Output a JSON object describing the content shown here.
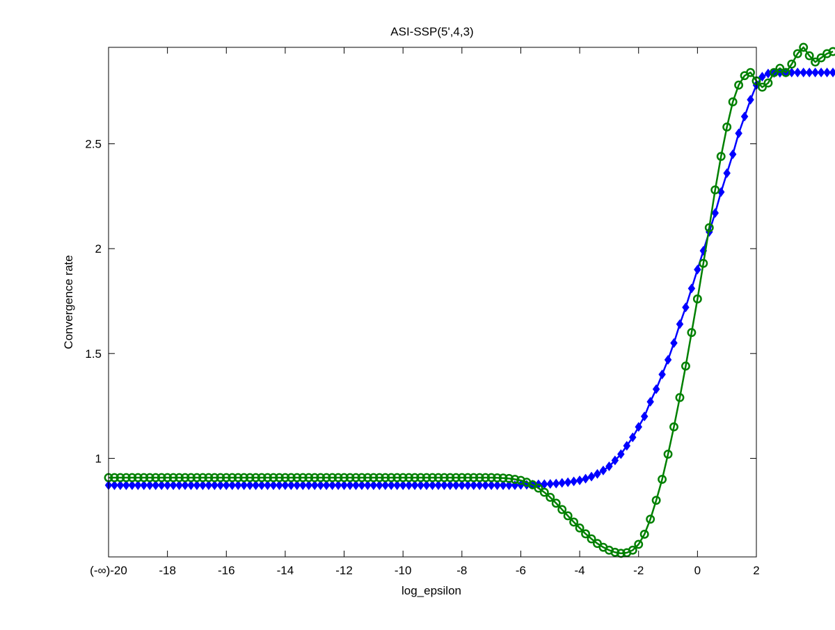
{
  "chart_data": {
    "type": "line",
    "title": "ASI-SSP(5',4,3)",
    "xlabel": "log_epsilon",
    "ylabel": "Convergence rate",
    "xlim": [
      -20,
      2
    ],
    "ylim": [
      0.53,
      2.96
    ],
    "grid": false,
    "legend": "none",
    "x_tick_labels": [
      {
        "value": -20,
        "label": "(-∞)-20"
      },
      {
        "value": -18,
        "label": "-18"
      },
      {
        "value": -16,
        "label": "-16"
      },
      {
        "value": -14,
        "label": "-14"
      },
      {
        "value": -12,
        "label": "-12"
      },
      {
        "value": -10,
        "label": "-10"
      },
      {
        "value": -8,
        "label": "-8"
      },
      {
        "value": -6,
        "label": "-6"
      },
      {
        "value": -4,
        "label": "-4"
      },
      {
        "value": -2,
        "label": "-2"
      },
      {
        "value": 0,
        "label": "0"
      },
      {
        "value": 2,
        "label": "2"
      }
    ],
    "y_tick_labels": [
      {
        "value": 1.0,
        "label": "1"
      },
      {
        "value": 1.5,
        "label": "1.5"
      },
      {
        "value": 2.0,
        "label": "2"
      },
      {
        "value": 2.5,
        "label": "2.5"
      }
    ],
    "series": [
      {
        "color": "#0000ff",
        "marker": "diamond",
        "x_start": -20,
        "x_step": 0.2,
        "plateau_until": -6.2,
        "plateau_value": 0.872,
        "values_after": [
          0.872,
          0.873,
          0.874,
          0.875,
          0.876,
          0.877,
          0.878,
          0.88,
          0.883,
          0.886,
          0.89,
          0.895,
          0.903,
          0.913,
          0.926,
          0.942,
          0.962,
          0.99,
          1.02,
          1.06,
          1.1,
          1.15,
          1.2,
          1.27,
          1.33,
          1.4,
          1.47,
          1.55,
          1.64,
          1.72,
          1.81,
          1.9,
          1.99,
          2.08,
          2.17,
          2.27,
          2.36,
          2.45,
          2.55,
          2.63,
          2.71,
          2.78,
          2.82,
          2.835,
          2.838,
          2.839,
          2.84,
          2.84,
          2.84,
          2.84,
          2.84,
          2.84,
          2.84,
          2.84,
          2.84,
          2.84,
          2.84,
          2.84,
          2.84,
          2.84,
          2.84
        ]
      },
      {
        "color": "#008000",
        "marker": "circle",
        "x_start": -20,
        "x_step": 0.2,
        "plateau_until": -7,
        "plateau_value": 0.908,
        "values_after": [
          0.908,
          0.907,
          0.906,
          0.904,
          0.9,
          0.895,
          0.886,
          0.874,
          0.858,
          0.838,
          0.814,
          0.786,
          0.756,
          0.726,
          0.696,
          0.668,
          0.64,
          0.616,
          0.594,
          0.576,
          0.562,
          0.552,
          0.547,
          0.55,
          0.562,
          0.59,
          0.638,
          0.71,
          0.8,
          0.9,
          1.02,
          1.15,
          1.29,
          1.44,
          1.6,
          1.76,
          1.93,
          2.1,
          2.28,
          2.44,
          2.58,
          2.7,
          2.78,
          2.825,
          2.84,
          2.8,
          2.77,
          2.79,
          2.84,
          2.86,
          2.84,
          2.88,
          2.93,
          2.96,
          2.92,
          2.89,
          2.91,
          2.93,
          2.94
        ]
      }
    ]
  }
}
